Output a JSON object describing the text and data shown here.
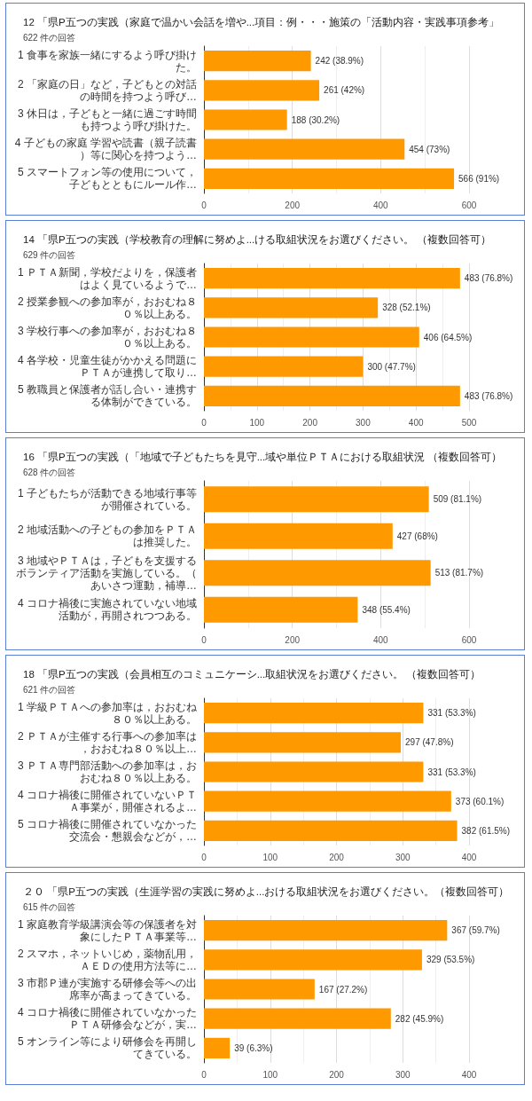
{
  "chart_data": [
    {
      "type": "bar",
      "orientation": "horizontal",
      "title": "12 「県P五つの実践（家庭で温かい会話を増や...項目：例・・・施策の「活動内容・実践事項参考」",
      "subtitle": "622 件の回答",
      "categories": [
        "1 食事を家族一緒にするよう呼び掛けた。",
        "2 「家庭の日」など，子どもとの対話の時間を持つよう呼び…",
        "3 休日は，子どもと一緒に過ごす時間も持つよう呼び掛けた。",
        "4 子どもの家庭 学習や読書（親子読書）等に関心を持つよう…",
        "5 スマートフォン等の使用について，子どもとともにルール作…"
      ],
      "values": [
        242,
        261,
        188,
        454,
        566
      ],
      "value_labels": [
        "242 (38.9%)",
        "261 (42%)",
        "188 (30.2%)",
        "454 (73%)",
        "566 (91%)"
      ],
      "color": "#ff9900",
      "xlim": [
        0,
        600
      ],
      "xticks": [
        0,
        200,
        400,
        600
      ],
      "grid": "x"
    },
    {
      "type": "bar",
      "orientation": "horizontal",
      "title": "14 「県P五つの実践（学校教育の理解に努めよ...ける取組状況をお選びください。 （複数回答可）",
      "subtitle": "629 件の回答",
      "categories": [
        "1 ＰＴＡ新聞，学校だよりを，保護者はよく見ているようで…",
        "2 授業参観への参加率が，おおむね８０％以上ある。",
        "3 学校行事への参加率が，おおむね８０％以上ある。",
        "4 各学校・児童生徒がかかえる問題にＰＴＡが連携して取り…",
        "5 教職員と保護者が話し合い・連携する体制ができている。"
      ],
      "values": [
        483,
        328,
        406,
        300,
        483
      ],
      "value_labels": [
        "483 (76.8%)",
        "328 (52.1%)",
        "406 (64.5%)",
        "300 (47.7%)",
        "483 (76.8%)"
      ],
      "color": "#ff9900",
      "xlim": [
        0,
        500
      ],
      "xticks": [
        0,
        100,
        200,
        300,
        400,
        500
      ],
      "grid": "x"
    },
    {
      "type": "bar",
      "orientation": "horizontal",
      "title": "16 「県P五つの実践（「地域で子どもたちを見守...域や単位ＰＴＡにおける取組状況 （複数回答可）",
      "subtitle": "628 件の回答",
      "categories": [
        "1 子どもたちが活動できる地域行事等が開催されている。",
        "2 地域活動への子どもの参加をＰＴＡは推奨した。",
        "3 地域やＰＴＡは，子どもを支援するボランティア活動を実施している。（あいさつ運動，補導…",
        "4 コロナ禍後に実施されていない地域活動が，再開されつつある。"
      ],
      "values": [
        509,
        427,
        513,
        348
      ],
      "value_labels": [
        "509 (81.1%)",
        "427 (68%)",
        "513 (81.7%)",
        "348 (55.4%)"
      ],
      "color": "#ff9900",
      "xlim": [
        0,
        600
      ],
      "xticks": [
        0,
        200,
        400,
        600
      ],
      "grid": "x"
    },
    {
      "type": "bar",
      "orientation": "horizontal",
      "title": "18 「県P五つの実践（会員相互のコミュニケーシ...取組状況をお選びください。 （複数回答可）",
      "subtitle": "621 件の回答",
      "categories": [
        "1 学級ＰＴＡへの参加率は，おおむね８０％以上ある。",
        "2 ＰＴＡが主催する行事への参加率は，おおむね８０％以上…",
        "3 ＰＴＡ専門部活動への参加率は，おおむね８０％以上ある。",
        "4 コロナ禍後に開催されていないＰＴＡ事業が，開催されるよ…",
        "5 コロナ禍後に開催されていなかった交流会・懇親会などが，…"
      ],
      "values": [
        331,
        297,
        331,
        373,
        382
      ],
      "value_labels": [
        "331 (53.3%)",
        "297 (47.8%)",
        "331 (53.3%)",
        "373 (60.1%)",
        "382 (61.5%)"
      ],
      "color": "#ff9900",
      "xlim": [
        0,
        400
      ],
      "xticks": [
        0,
        100,
        200,
        300,
        400
      ],
      "grid": "x"
    },
    {
      "type": "bar",
      "orientation": "horizontal",
      "title": "２０ 「県P五つの実践（生涯学習の実践に努めよ...おける取組状況をお選びください。（複数回答可）",
      "subtitle": "615 件の回答",
      "categories": [
        "1 家庭教育学級講演会等の保護者を対象にしたＰＴＡ事業等…",
        "2 スマホ，ネットいじめ，薬物乱用，ＡＥＤの使用方法等に…",
        "3 市郡Ｐ連が実施する研修会等への出席率が高まってきている。",
        "4 コロナ禍後に開催されていなかったＰＴＡ研修会などが，実…",
        "5 オンライン等により研修会を再開してきている。"
      ],
      "values": [
        367,
        329,
        167,
        282,
        39
      ],
      "value_labels": [
        "367 (59.7%)",
        "329 (53.5%)",
        "167 (27.2%)",
        "282 (45.9%)",
        "39 (6.3%)"
      ],
      "color": "#ff9900",
      "xlim": [
        0,
        400
      ],
      "xticks": [
        0,
        100,
        200,
        300,
        400
      ],
      "grid": "x"
    }
  ]
}
